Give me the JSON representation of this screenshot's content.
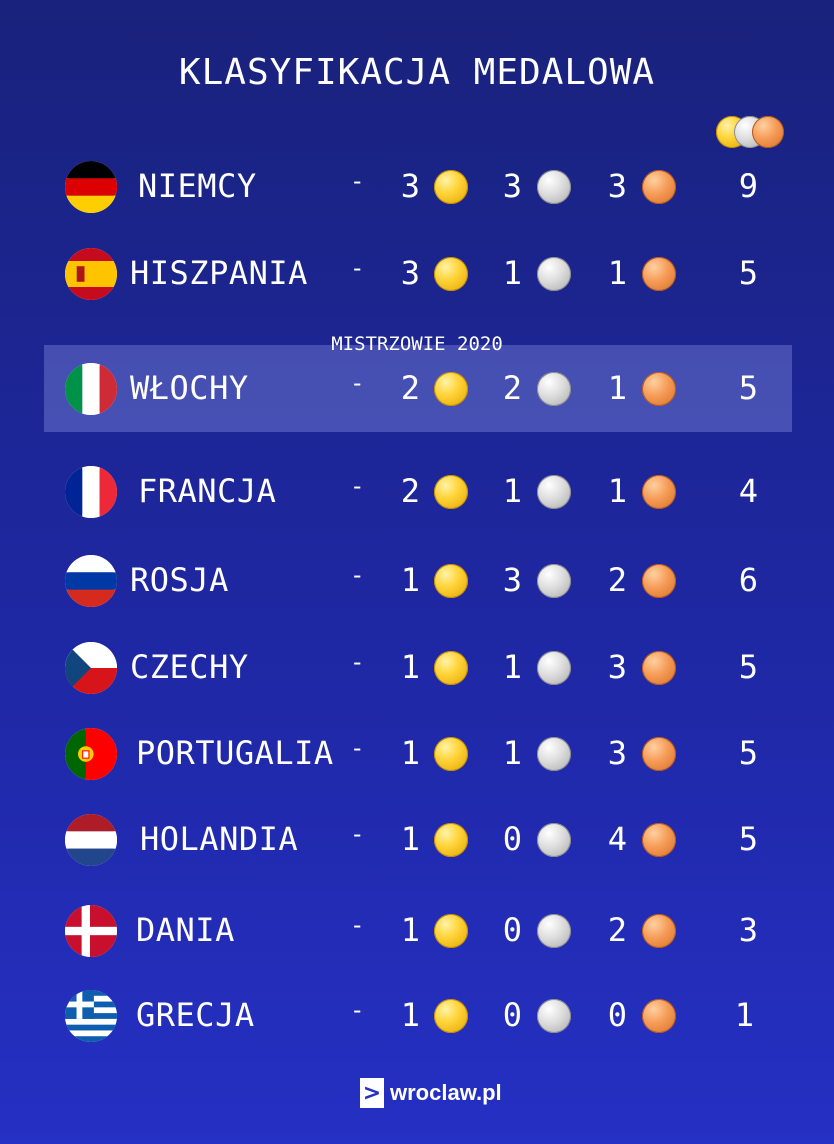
{
  "title": "KLASYFIKACJA MEDALOWA",
  "champions_label": "MISTRZOWIE 2020",
  "header_icon": "medal-set-icon",
  "rows": [
    {
      "country": "NIEMCY",
      "dash": "-",
      "gold": "3",
      "silver": "3",
      "bronze": "3",
      "total": "9",
      "flag": "germany"
    },
    {
      "country": "HISZPANIA",
      "dash": "-",
      "gold": "3",
      "silver": "1",
      "bronze": "1",
      "total": "5",
      "flag": "spain"
    },
    {
      "country": "WŁOCHY",
      "dash": "-",
      "gold": "2",
      "silver": "2",
      "bronze": "1",
      "total": "5",
      "flag": "italy"
    },
    {
      "country": "FRANCJA",
      "dash": "-",
      "gold": "2",
      "silver": "1",
      "bronze": "1",
      "total": "4",
      "flag": "france"
    },
    {
      "country": "ROSJA",
      "dash": "-",
      "gold": "1",
      "silver": "3",
      "bronze": "2",
      "total": "6",
      "flag": "russia"
    },
    {
      "country": "CZECHY",
      "dash": "-",
      "gold": "1",
      "silver": "1",
      "bronze": "3",
      "total": "5",
      "flag": "czechia"
    },
    {
      "country": "PORTUGALIA",
      "dash": "-",
      "gold": "1",
      "silver": "1",
      "bronze": "3",
      "total": "5",
      "flag": "portugal"
    },
    {
      "country": "HOLANDIA",
      "dash": "-",
      "gold": "1",
      "silver": "0",
      "bronze": "4",
      "total": "5",
      "flag": "netherlands"
    },
    {
      "country": "DANIA",
      "dash": "-",
      "gold": "1",
      "silver": "0",
      "bronze": "2",
      "total": "3",
      "flag": "denmark"
    },
    {
      "country": "GRECJA",
      "dash": "-",
      "gold": "1",
      "silver": "0",
      "bronze": "0",
      "total": "1",
      "flag": "greece"
    }
  ],
  "footer": {
    "logo_mark": ">",
    "logo_text": "wroclaw.pl"
  },
  "colors": {
    "background": "#1f28a6",
    "highlight": "#5a63c8",
    "gold": "#ffd43a",
    "silver": "#dcdcdc",
    "bronze": "#f59a55"
  }
}
